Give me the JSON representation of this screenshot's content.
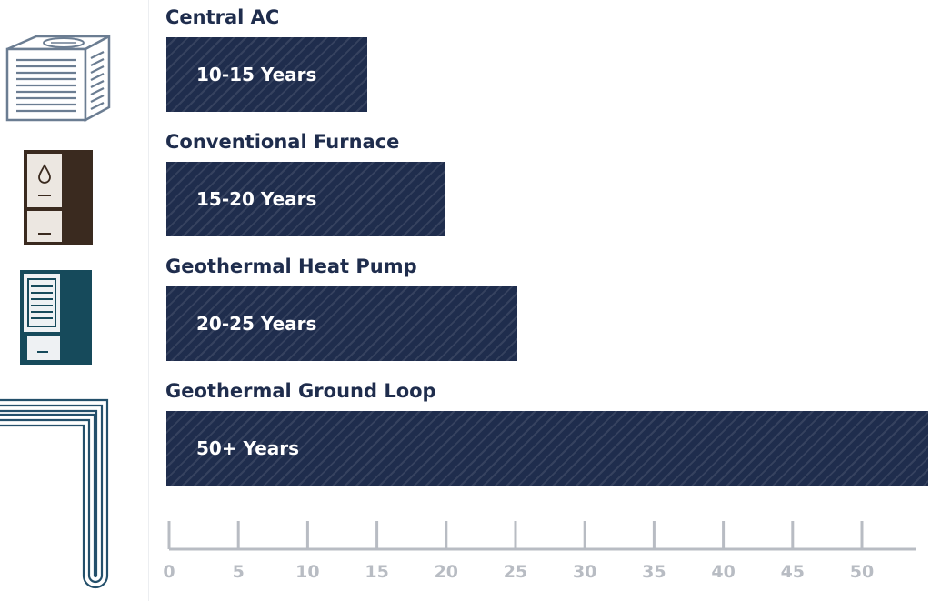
{
  "colors": {
    "bar": "#1f2d4d",
    "label": "#1f2d4d",
    "axis": "#b8bcc3",
    "furnace_side": "#3a2a1f",
    "heatpump_side": "#164a5b",
    "icon_stroke": "#6b7d92"
  },
  "icons": [
    "central-ac-unit-icon",
    "furnace-icon",
    "heat-pump-icon",
    "ground-loop-pipe-icon"
  ],
  "chart_data": {
    "type": "bar",
    "orientation": "horizontal",
    "title": "",
    "xlabel": "",
    "ylabel": "",
    "xlim": [
      0,
      55
    ],
    "grid": false,
    "legend": "none",
    "categories": [
      "Central AC",
      "Conventional Furnace",
      "Geothermal Heat Pump",
      "Geothermal Ground Loop"
    ],
    "values": [
      14.3,
      19.9,
      25.1,
      55
    ],
    "data_labels": [
      "10-15 Years",
      "15-20 Years",
      "20-25 Years",
      "50+ Years"
    ],
    "ticks": [
      0,
      5,
      10,
      15,
      20,
      25,
      30,
      35,
      40,
      45,
      50
    ]
  }
}
